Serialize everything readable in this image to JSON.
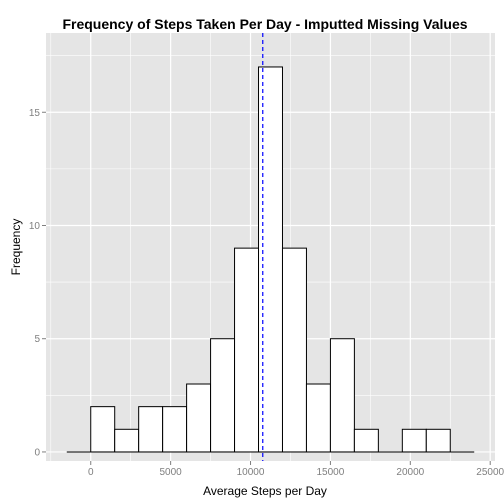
{
  "chart_data": {
    "type": "bar",
    "title": "Frequency of Steps Taken Per Day - Imputted Missing Values",
    "xlabel": "Average Steps per Day",
    "ylabel": "Frequency",
    "xlim": [
      -2800,
      25300
    ],
    "ylim": [
      -0.4,
      18.5
    ],
    "x_ticks": [
      {
        "value": 0,
        "label": "0"
      },
      {
        "value": 5000,
        "label": "5000"
      },
      {
        "value": 10000,
        "label": "10000"
      },
      {
        "value": 15000,
        "label": "15000"
      },
      {
        "value": 20000,
        "label": "20000"
      },
      {
        "value": 25000,
        "label": "25000"
      }
    ],
    "y_ticks": [
      {
        "value": 0,
        "label": "0"
      },
      {
        "value": 5,
        "label": "5"
      },
      {
        "value": 10,
        "label": "10"
      },
      {
        "value": 15,
        "label": "15"
      }
    ],
    "bins": [
      {
        "start": -1500,
        "end": 0,
        "count": 0
      },
      {
        "start": 0,
        "end": 1500,
        "count": 2
      },
      {
        "start": 1500,
        "end": 3000,
        "count": 1
      },
      {
        "start": 3000,
        "end": 4500,
        "count": 2
      },
      {
        "start": 4500,
        "end": 6000,
        "count": 2
      },
      {
        "start": 6000,
        "end": 7500,
        "count": 3
      },
      {
        "start": 7500,
        "end": 9000,
        "count": 5
      },
      {
        "start": 9000,
        "end": 10500,
        "count": 9
      },
      {
        "start": 10500,
        "end": 12000,
        "count": 17
      },
      {
        "start": 12000,
        "end": 13500,
        "count": 9
      },
      {
        "start": 13500,
        "end": 15000,
        "count": 3
      },
      {
        "start": 15000,
        "end": 16500,
        "count": 5
      },
      {
        "start": 16500,
        "end": 18000,
        "count": 1
      },
      {
        "start": 18000,
        "end": 19500,
        "count": 0
      },
      {
        "start": 19500,
        "end": 21000,
        "count": 1
      },
      {
        "start": 21000,
        "end": 22500,
        "count": 1
      },
      {
        "start": 22500,
        "end": 24000,
        "count": 0
      }
    ],
    "mean_line": {
      "value": 10766,
      "color": "#0000ff",
      "style": "dashed"
    },
    "bar_fill": "#ffffff",
    "bar_stroke": "#000000",
    "panel_background": "#e5e5e5",
    "grid": true,
    "grid_color": "#ffffff"
  }
}
